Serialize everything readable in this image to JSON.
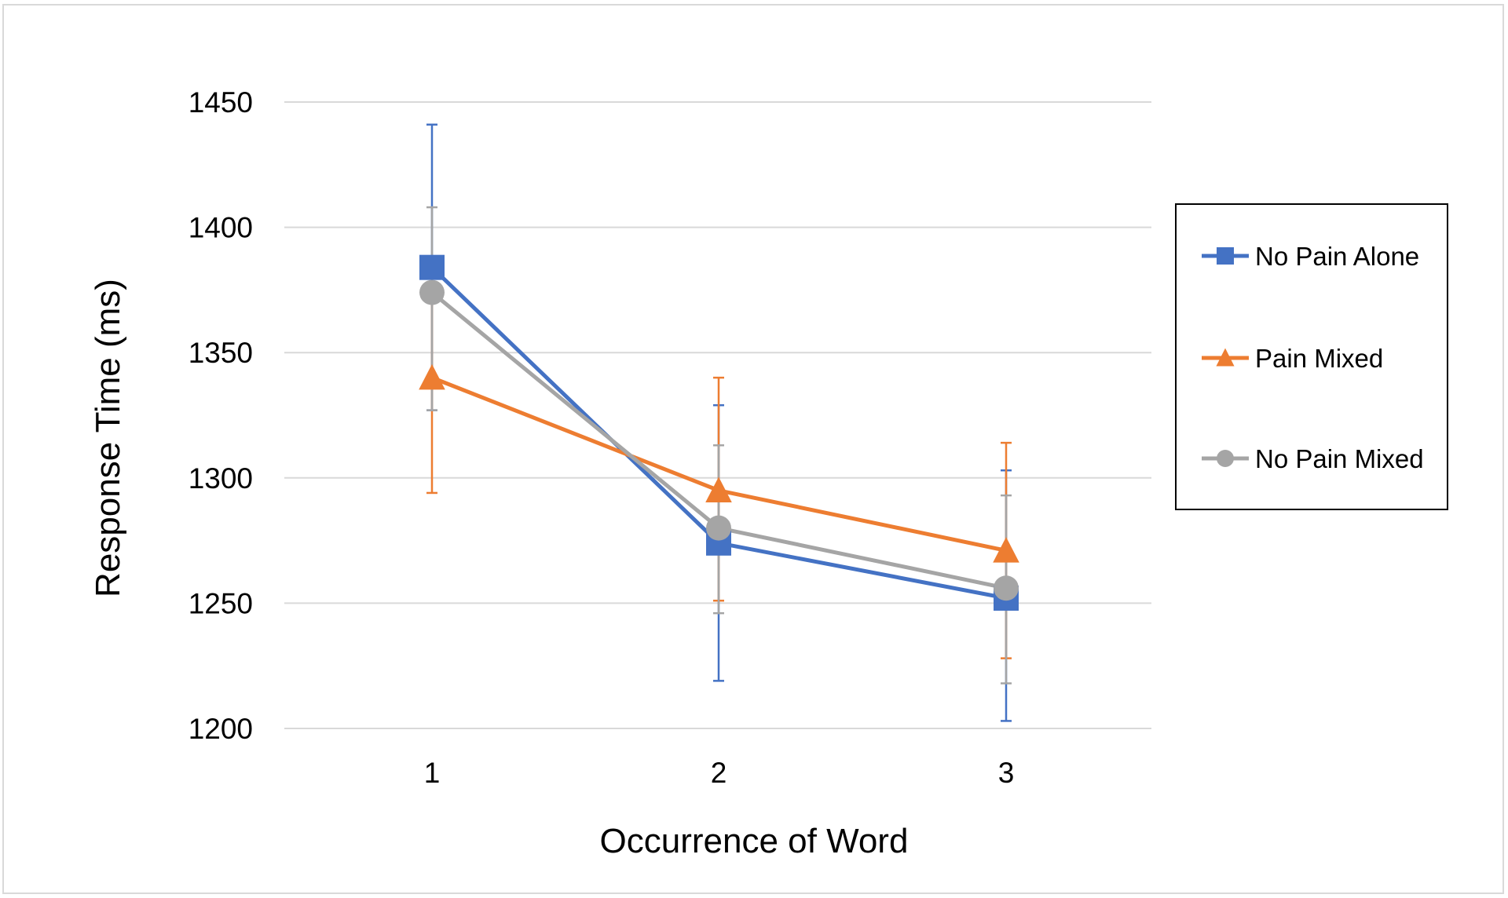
{
  "chart_data": {
    "type": "line",
    "title": "",
    "xlabel": "Occurrence of Word",
    "ylabel": "Response Time (ms)",
    "categories": [
      "1",
      "2",
      "3"
    ],
    "ylim": [
      1200,
      1450
    ],
    "yticks": [
      1200,
      1250,
      1300,
      1350,
      1400,
      1450
    ],
    "grid": "horizontal",
    "legend_position": "right",
    "series": [
      {
        "name": "No Pain Alone",
        "color": "#4472C4",
        "marker": "square",
        "values": [
          1384,
          1274,
          1252
        ],
        "error_low": [
          1327,
          1219,
          1203
        ],
        "error_high": [
          1441,
          1329,
          1303
        ]
      },
      {
        "name": "Pain Mixed",
        "color": "#ED7D31",
        "marker": "triangle",
        "values": [
          1340,
          1295,
          1271
        ],
        "error_low": [
          1294,
          1251,
          1228
        ],
        "error_high": [
          1386,
          1340,
          1314
        ]
      },
      {
        "name": "No Pain Mixed",
        "color": "#A5A5A5",
        "marker": "circle",
        "values": [
          1374,
          1280,
          1256
        ],
        "error_low": [
          1327,
          1246,
          1218
        ],
        "error_high": [
          1408,
          1313,
          1293
        ]
      }
    ]
  }
}
